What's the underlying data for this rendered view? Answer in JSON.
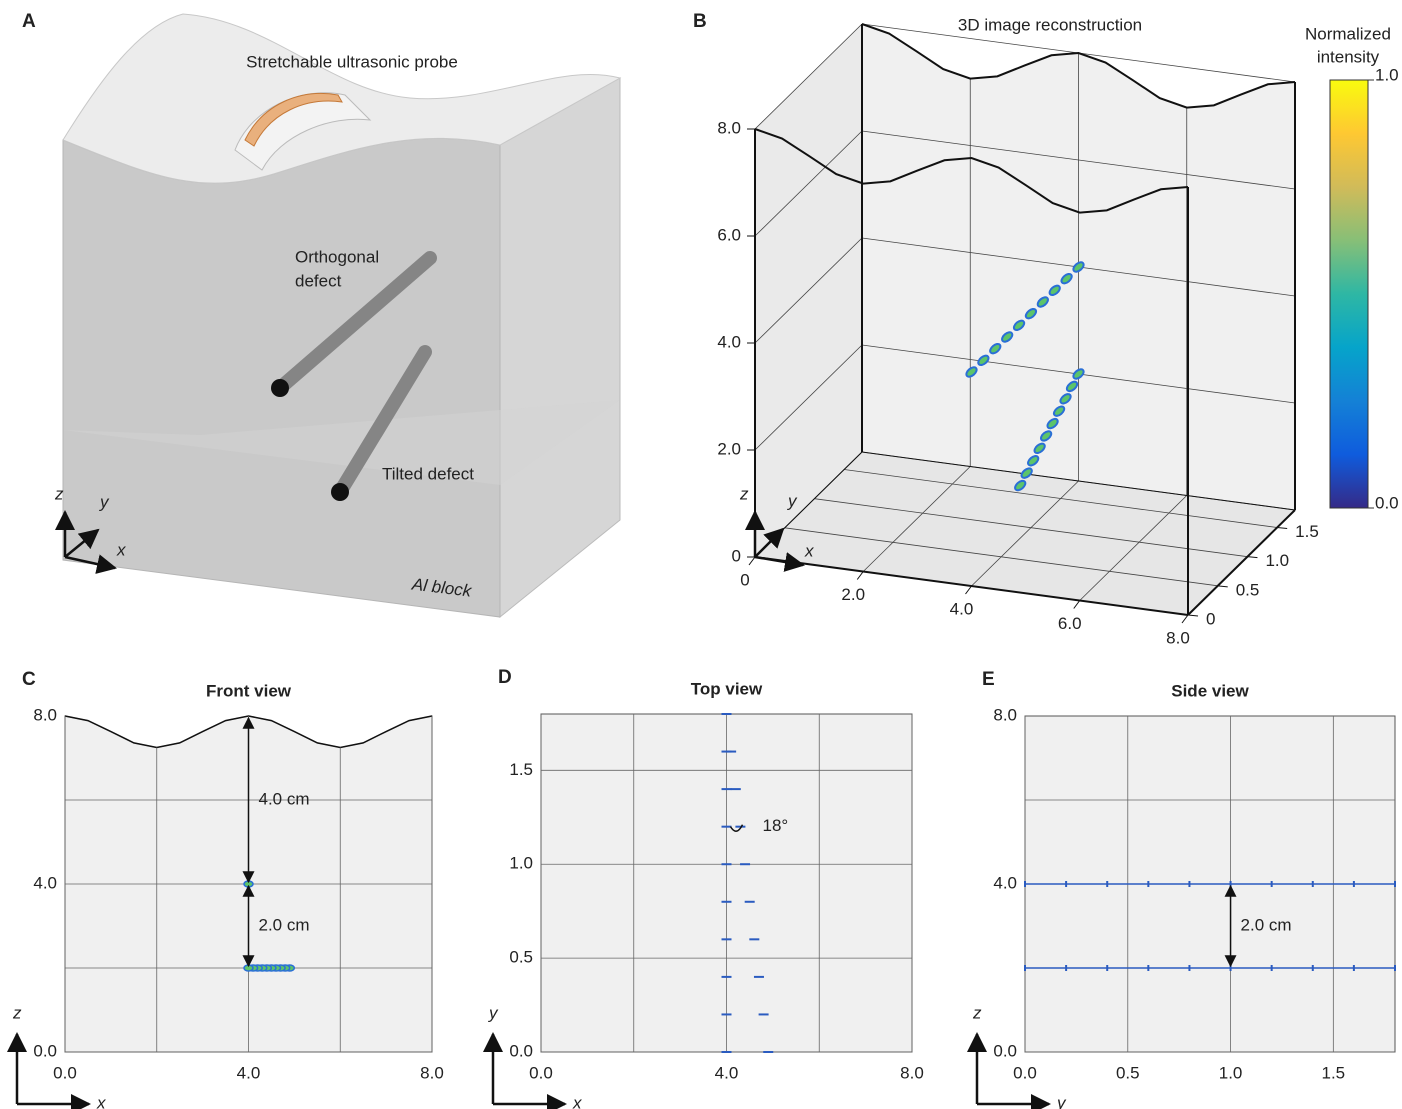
{
  "illustration": {
    "panel": "A",
    "labels": {
      "probe": "Stretchable ultrasonic probe",
      "orthogonal": [
        "Orthogonal",
        "defect"
      ],
      "tilted": "Tilted defect",
      "block": "Al block"
    },
    "axis_labels": {
      "x": "x",
      "y": "y",
      "z": "z"
    }
  },
  "chart_data": [
    {
      "type": "scatter3d",
      "panel": "B",
      "title": "3D image reconstruction",
      "axis_labels": {
        "x": "x",
        "y": "y",
        "z": "z"
      },
      "xlim": [
        0,
        8
      ],
      "ylim": [
        0,
        1.8
      ],
      "zlim": [
        0,
        8
      ],
      "xticks": [
        0,
        {
          "value": 2,
          "label": "2.0"
        },
        {
          "value": 4,
          "label": "4.0"
        },
        {
          "value": 6,
          "label": "6.0"
        },
        {
          "value": 8,
          "label": "8.0"
        }
      ],
      "yticks": [
        0,
        0.5,
        {
          "value": 1,
          "label": "1.0"
        },
        1.5
      ],
      "zticks": [
        0,
        {
          "value": 2,
          "label": "2.0"
        },
        {
          "value": 4,
          "label": "4.0"
        },
        {
          "value": 6,
          "label": "6.0"
        },
        {
          "value": 8,
          "label": "8.0"
        }
      ],
      "surface": {
        "x": [
          0,
          0.5,
          1,
          1.5,
          2,
          2.5,
          3,
          3.5,
          4,
          4.5,
          5,
          5.5,
          6,
          6.5,
          7,
          7.5,
          8
        ],
        "z": [
          8,
          7.89,
          7.63,
          7.36,
          7.25,
          7.36,
          7.63,
          7.89,
          8,
          7.89,
          7.63,
          7.36,
          7.25,
          7.36,
          7.63,
          7.89,
          8
        ]
      },
      "series": [
        {
          "color": "#2a6fd6",
          "fill": "#5cc46a",
          "x": [
            4,
            4,
            4,
            4,
            4,
            4,
            4,
            4,
            4,
            4
          ],
          "y": [
            0,
            0.2,
            0.4,
            0.6,
            0.8,
            1,
            1.2,
            1.4,
            1.6,
            1.8
          ],
          "z": [
            4,
            4,
            4,
            4,
            4,
            4,
            4,
            4,
            4,
            4
          ]
        },
        {
          "color": "#2a6fd6",
          "fill": "#5cc46a",
          "x": [
            4.9,
            4.8,
            4.7,
            4.6,
            4.5,
            4.4,
            4.3,
            4.2,
            4.1,
            4.0
          ],
          "y": [
            0,
            0.2,
            0.4,
            0.6,
            0.8,
            1,
            1.2,
            1.4,
            1.6,
            1.8
          ],
          "z": [
            2,
            2,
            2,
            2,
            2,
            2,
            2,
            2,
            2,
            2
          ]
        }
      ],
      "colorbar": {
        "label": [
          "Normalized",
          "intensity"
        ],
        "ticks": [
          {
            "value": 0,
            "label": "0.0"
          },
          {
            "value": 1,
            "label": "1.0"
          }
        ],
        "colors": [
          "#352a87",
          "#0f5cdd",
          "#1481d6",
          "#06a4ca",
          "#2eb7a4",
          "#87bf77",
          "#d1bb59",
          "#fec832",
          "#f9fb0e"
        ]
      }
    },
    {
      "type": "scatter",
      "marker": "dot",
      "panel": "C",
      "title": "Front view",
      "axis_labels": {
        "x": "x",
        "y": "z"
      },
      "xlim": [
        0,
        8
      ],
      "ylim": [
        0,
        8
      ],
      "xticks": [
        {
          "value": 0,
          "label": "0.0"
        },
        {
          "value": 4,
          "label": "4.0"
        },
        {
          "value": 8,
          "label": "8.0"
        }
      ],
      "yticks": [
        {
          "value": 0,
          "label": "0.0"
        },
        {
          "value": 4,
          "label": "4.0"
        },
        {
          "value": 8,
          "label": "8.0"
        }
      ],
      "xgrid": [
        2,
        6
      ],
      "ygrid": [
        2,
        6
      ],
      "surface": {
        "x": [
          0,
          0.5,
          1,
          1.5,
          2,
          2.5,
          3,
          3.5,
          4,
          4.5,
          5,
          5.5,
          6,
          6.5,
          7,
          7.5,
          8
        ],
        "y": [
          8,
          7.89,
          7.63,
          7.36,
          7.25,
          7.36,
          7.63,
          7.89,
          8,
          7.89,
          7.63,
          7.36,
          7.25,
          7.36,
          7.63,
          7.89,
          8
        ]
      },
      "series": [
        {
          "color": "#2a6fd6",
          "fill": "#5cc46a",
          "x": [
            4
          ],
          "y": [
            4
          ]
        },
        {
          "color": "#2a6fd6",
          "fill": "#5cc46a",
          "x": [
            4.9,
            4.8,
            4.7,
            4.6,
            4.5,
            4.4,
            4.3,
            4.2,
            4.1,
            4.0
          ],
          "y": [
            2,
            2,
            2,
            2,
            2,
            2,
            2,
            2,
            2,
            2
          ]
        }
      ],
      "annotations": [
        {
          "text": "4.0 cm",
          "x": 4,
          "from": 8,
          "to": 4
        },
        {
          "text": "2.0 cm",
          "x": 4,
          "from": 4,
          "to": 2
        }
      ]
    },
    {
      "type": "scatter",
      "marker": "dash",
      "panel": "D",
      "title": "Top view",
      "axis_labels": {
        "x": "x",
        "y": "y"
      },
      "xlim": [
        0,
        8
      ],
      "ylim": [
        0,
        1.8
      ],
      "xticks": [
        {
          "value": 0,
          "label": "0.0"
        },
        {
          "value": 4,
          "label": "4.0"
        },
        {
          "value": 8,
          "label": "8.0"
        }
      ],
      "yticks": [
        {
          "value": 0,
          "label": "0.0"
        },
        0.5,
        {
          "value": 1,
          "label": "1.0"
        },
        1.5
      ],
      "xgrid": [
        2,
        6
      ],
      "series": [
        {
          "color": "#2a5bc0",
          "x": [
            4,
            4,
            4,
            4,
            4,
            4,
            4,
            4,
            4,
            4
          ],
          "y": [
            0,
            0.2,
            0.4,
            0.6,
            0.8,
            1,
            1.2,
            1.4,
            1.6,
            1.8
          ]
        },
        {
          "color": "#2a5bc0",
          "x": [
            4.9,
            4.8,
            4.7,
            4.6,
            4.5,
            4.4,
            4.3,
            4.2,
            4.1,
            4.0
          ],
          "y": [
            0,
            0.2,
            0.4,
            0.6,
            0.8,
            1,
            1.2,
            1.4,
            1.6,
            1.8
          ]
        }
      ],
      "annotations": [
        {
          "text": "18°",
          "x": 4,
          "y": 1.2
        }
      ]
    },
    {
      "type": "scatter",
      "marker": "line",
      "panel": "E",
      "title": "Side view",
      "axis_labels": {
        "x": "y",
        "y": "z"
      },
      "xlim": [
        0,
        1.8
      ],
      "ylim": [
        0,
        8
      ],
      "xticks": [
        {
          "value": 0,
          "label": "0.0"
        },
        0.5,
        {
          "value": 1,
          "label": "1.0"
        },
        1.5
      ],
      "yticks": [
        {
          "value": 0,
          "label": "0.0"
        },
        {
          "value": 4,
          "label": "4.0"
        },
        {
          "value": 8,
          "label": "8.0"
        }
      ],
      "ygrid": [
        2,
        6
      ],
      "series": [
        {
          "color": "#2a5bc0",
          "x": [
            0,
            0.2,
            0.4,
            0.6,
            0.8,
            1,
            1.2,
            1.4,
            1.6,
            1.8
          ],
          "y": [
            4,
            4,
            4,
            4,
            4,
            4,
            4,
            4,
            4,
            4
          ]
        },
        {
          "color": "#2a5bc0",
          "x": [
            0,
            0.2,
            0.4,
            0.6,
            0.8,
            1,
            1.2,
            1.4,
            1.6,
            1.8
          ],
          "y": [
            2,
            2,
            2,
            2,
            2,
            2,
            2,
            2,
            2,
            2
          ]
        }
      ],
      "annotations": [
        {
          "text": "2.0 cm",
          "x": 1,
          "from": 4,
          "to": 2
        }
      ]
    }
  ]
}
